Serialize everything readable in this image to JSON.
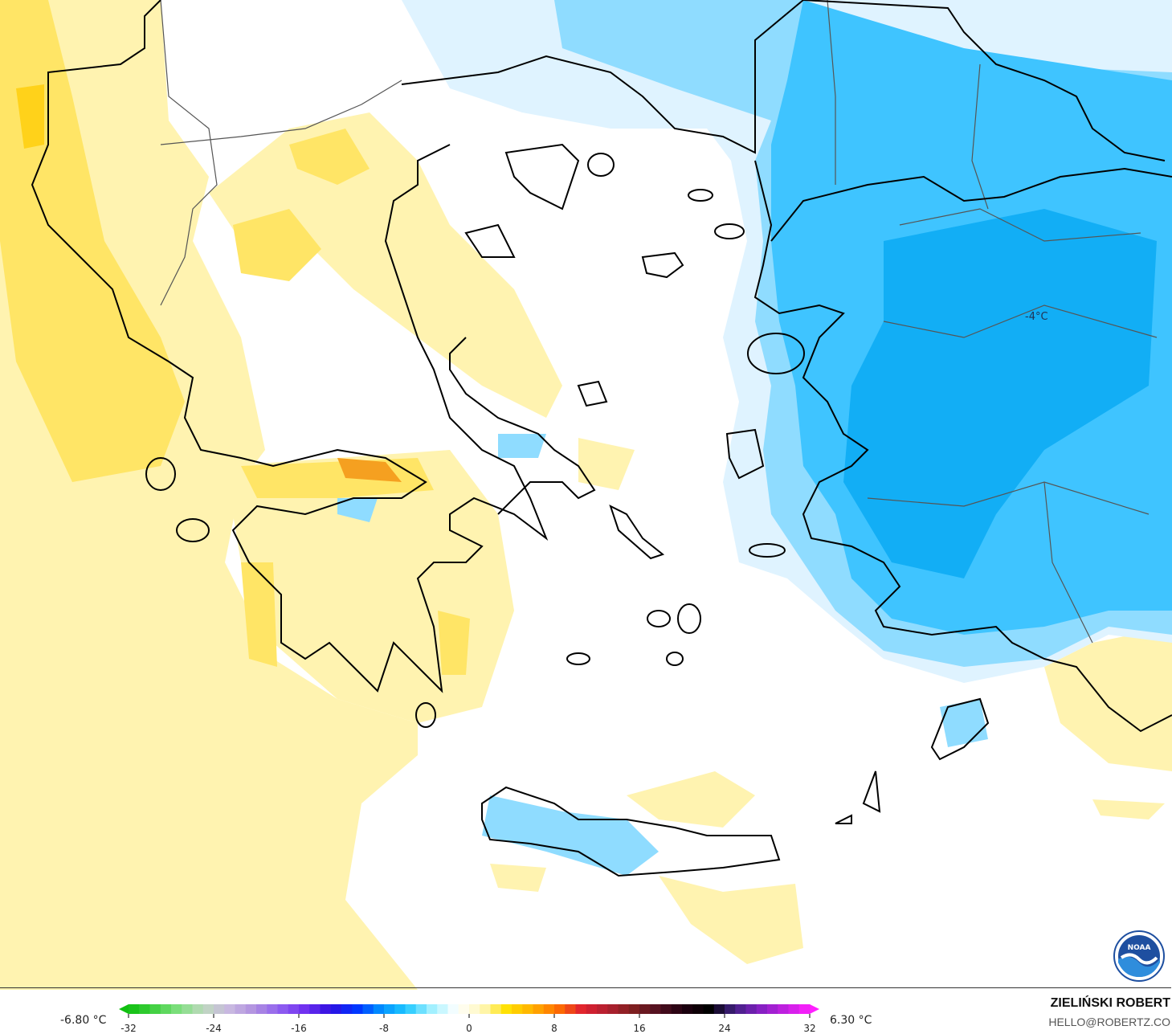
{
  "map": {
    "isoline_label": "-4°C",
    "colors": {
      "warm_light": "#fff3b0",
      "warm": "#ffe566",
      "warm_strong": "#ffd21a",
      "hot": "#f5a020",
      "cool_light": "#dff3ff",
      "cool": "#8fdcff",
      "cold": "#3fc4ff",
      "colder": "#12aef5",
      "coast": "#000000",
      "border": "#555555"
    }
  },
  "legend": {
    "min_label": "-6.80 °C",
    "max_label": "6.30 °C",
    "ticks": [
      "-32",
      "-24",
      "-16",
      "-8",
      "0",
      "8",
      "16",
      "24",
      "32"
    ],
    "range": [
      -32,
      32
    ],
    "color_stops": [
      "#10c010",
      "#40d040",
      "#80e080",
      "#c0d8c0",
      "#c8b8e0",
      "#b090e0",
      "#9060f0",
      "#7030f0",
      "#3010e0",
      "#0030ff",
      "#0090ff",
      "#20c8ff",
      "#a0f0ff",
      "#ffffff",
      "#fff8c0",
      "#ffe000",
      "#ffb000",
      "#ff7000",
      "#e02030",
      "#b02030",
      "#802020",
      "#501020",
      "#200010",
      "#000000",
      "#402080",
      "#8020c0",
      "#c020e0",
      "#ff20ff"
    ]
  },
  "credits": {
    "author": "ZIELIŃSKI ROBERT",
    "email": "HELLO@ROBERTZ.CO",
    "logo_text": "NOAA"
  }
}
